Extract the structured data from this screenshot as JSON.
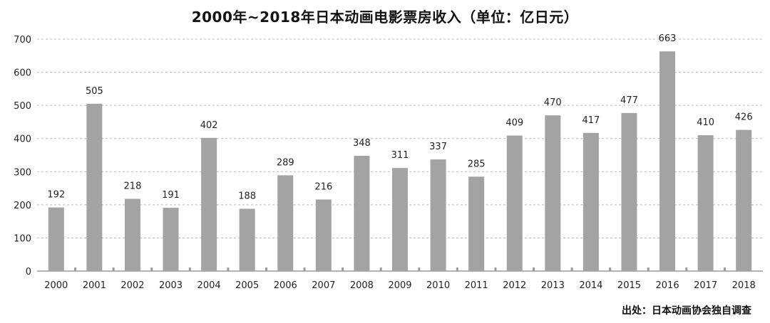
{
  "chart_data": {
    "type": "bar",
    "title": "2000年~2018年日本动画电影票房收入（单位：亿日元）",
    "source": "出处：日本动画协会独自调查",
    "xlabel": "",
    "ylabel": "",
    "ylim": [
      0,
      700
    ],
    "yticks": [
      0,
      100,
      200,
      300,
      400,
      500,
      600,
      700
    ],
    "grid": true,
    "bar_color": "#a3a3a3",
    "categories": [
      "2000",
      "2001",
      "2002",
      "2003",
      "2004",
      "2005",
      "2006",
      "2007",
      "2008",
      "2009",
      "2010",
      "2011",
      "2012",
      "2013",
      "2014",
      "2015",
      "2016",
      "2017",
      "2018"
    ],
    "values": [
      192,
      505,
      218,
      191,
      402,
      188,
      289,
      216,
      348,
      311,
      337,
      285,
      409,
      470,
      417,
      477,
      663,
      410,
      426
    ]
  }
}
